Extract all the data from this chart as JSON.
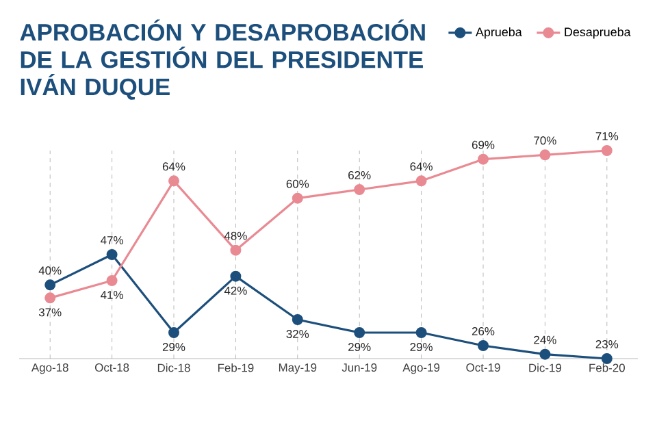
{
  "chart_data": {
    "type": "line",
    "title": "APROBACIÓN Y DESAPROBACIÓN DE LA GESTIÓN DEL PRESIDENTE IVÁN DUQUE",
    "categories": [
      "Ago-18",
      "Oct-18",
      "Dic-18",
      "Feb-19",
      "May-19",
      "Jun-19",
      "Ago-19",
      "Oct-19",
      "Dic-19",
      "Feb-20"
    ],
    "series": [
      {
        "name": "Aprueba",
        "color": "#1d4f7c",
        "values": [
          40,
          47,
          29,
          42,
          32,
          29,
          29,
          26,
          24,
          23
        ],
        "value_labels": [
          "40%",
          "47%",
          "29%",
          "42%",
          "32%",
          "29%",
          "29%",
          "26%",
          "24%",
          "23%"
        ]
      },
      {
        "name": "Desaprueba",
        "color": "#e98a93",
        "values": [
          37,
          41,
          64,
          48,
          60,
          62,
          64,
          69,
          70,
          71
        ],
        "value_labels": [
          "37%",
          "41%",
          "64%",
          "48%",
          "60%",
          "62%",
          "64%",
          "69%",
          "70%",
          "71%"
        ]
      }
    ],
    "grid": "x",
    "legend": "top right",
    "marker": "circle",
    "line_style": "solid"
  }
}
